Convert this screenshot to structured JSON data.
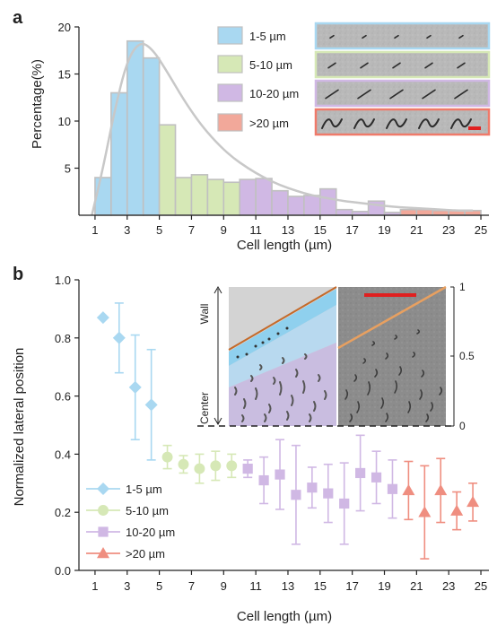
{
  "chart_data": [
    {
      "panel": "a",
      "type": "bar",
      "ylabel": "Percentage(%)",
      "xlabel": "Cell length (µm)",
      "xlim": [
        0,
        25.5
      ],
      "ylim": [
        0,
        20
      ],
      "xticks": [
        "1",
        "3",
        "5",
        "7",
        "9",
        "11",
        "13",
        "15",
        "17",
        "19",
        "21",
        "23",
        "25"
      ],
      "yticks": [
        "5",
        "10",
        "15",
        "20"
      ],
      "colors": {
        "1-5 µm": "#a9d8f1",
        "5-10 µm": "#d6e8b6",
        "10-20 µm": "#d0b8e4",
        ">20 µm": "#f2a89a",
        "curve": "#c8c8c8",
        "edge": "#c0c0c0"
      },
      "bins": [
        {
          "x": 1,
          "value": 4.0,
          "group": "1-5 µm"
        },
        {
          "x": 2,
          "value": 13.0,
          "group": "1-5 µm"
        },
        {
          "x": 3,
          "value": 18.5,
          "group": "1-5 µm"
        },
        {
          "x": 4,
          "value": 16.7,
          "group": "1-5 µm"
        },
        {
          "x": 5,
          "value": 9.6,
          "group": "5-10 µm"
        },
        {
          "x": 6,
          "value": 4.0,
          "group": "5-10 µm"
        },
        {
          "x": 7,
          "value": 4.3,
          "group": "5-10 µm"
        },
        {
          "x": 8,
          "value": 3.8,
          "group": "5-10 µm"
        },
        {
          "x": 9,
          "value": 3.5,
          "group": "5-10 µm"
        },
        {
          "x": 10,
          "value": 3.8,
          "group": "10-20 µm"
        },
        {
          "x": 11,
          "value": 3.9,
          "group": "10-20 µm"
        },
        {
          "x": 12,
          "value": 2.6,
          "group": "10-20 µm"
        },
        {
          "x": 13,
          "value": 2.0,
          "group": "10-20 µm"
        },
        {
          "x": 14,
          "value": 2.1,
          "group": "10-20 µm"
        },
        {
          "x": 15,
          "value": 2.8,
          "group": "10-20 µm"
        },
        {
          "x": 16,
          "value": 0.6,
          "group": "10-20 µm"
        },
        {
          "x": 17,
          "value": 0.4,
          "group": "10-20 µm"
        },
        {
          "x": 18,
          "value": 1.5,
          "group": "10-20 µm"
        },
        {
          "x": 19,
          "value": 0.3,
          "group": "10-20 µm"
        },
        {
          "x": 20,
          "value": 0.6,
          "group": ">20 µm"
        },
        {
          "x": 21,
          "value": 0.6,
          "group": ">20 µm"
        },
        {
          "x": 22,
          "value": 0.5,
          "group": ">20 µm"
        },
        {
          "x": 23,
          "value": 0.5,
          "group": ">20 µm"
        },
        {
          "x": 24,
          "value": 0.5,
          "group": ">20 µm"
        }
      ],
      "fit_curve": [
        [
          0.8,
          0
        ],
        [
          1.5,
          5
        ],
        [
          2.2,
          11
        ],
        [
          3.0,
          16.5
        ],
        [
          3.8,
          18.5
        ],
        [
          4.6,
          17.6
        ],
        [
          5.5,
          15.2
        ],
        [
          6.5,
          12.3
        ],
        [
          7.5,
          9.8
        ],
        [
          8.5,
          7.8
        ],
        [
          9.5,
          6.2
        ],
        [
          10.5,
          5.0
        ],
        [
          11.5,
          4.0
        ],
        [
          12.5,
          3.2
        ],
        [
          13.5,
          2.6
        ],
        [
          14.5,
          2.1
        ],
        [
          15.5,
          1.8
        ],
        [
          16.5,
          1.5
        ],
        [
          17.5,
          1.3
        ],
        [
          18.5,
          1.1
        ],
        [
          19.5,
          0.9
        ],
        [
          20.5,
          0.8
        ],
        [
          21.5,
          0.7
        ],
        [
          22.5,
          0.6
        ],
        [
          23.5,
          0.5
        ],
        [
          24.5,
          0.5
        ]
      ],
      "legend": [
        "1-5 µm",
        "5-10 µm",
        "10-20 µm",
        ">20 µm"
      ]
    },
    {
      "panel": "b",
      "type": "scatter",
      "ylabel": "Normalized lateral position",
      "xlabel": "Cell length (µm)",
      "xlim": [
        0,
        25.5
      ],
      "ylim": [
        0,
        1.0
      ],
      "xticks": [
        "1",
        "3",
        "5",
        "7",
        "9",
        "11",
        "13",
        "15",
        "17",
        "19",
        "21",
        "23",
        "25"
      ],
      "yticks": [
        "0.0",
        "0.2",
        "0.4",
        "0.6",
        "0.8",
        "1.0"
      ],
      "series": [
        {
          "name": "1-5 µm",
          "marker": "diamond",
          "color": "#a9d8f1",
          "points": [
            {
              "x": 1.5,
              "y": 0.87,
              "err": 0
            },
            {
              "x": 2.5,
              "y": 0.8,
              "err": 0.12
            },
            {
              "x": 3.5,
              "y": 0.63,
              "err": 0.18
            },
            {
              "x": 4.5,
              "y": 0.57,
              "err": 0.19
            }
          ]
        },
        {
          "name": "5-10 µm",
          "marker": "circle",
          "color": "#d6e8b6",
          "points": [
            {
              "x": 5.5,
              "y": 0.39,
              "err": 0.04
            },
            {
              "x": 6.5,
              "y": 0.365,
              "err": 0.03
            },
            {
              "x": 7.5,
              "y": 0.35,
              "err": 0.05
            },
            {
              "x": 8.5,
              "y": 0.36,
              "err": 0.05
            },
            {
              "x": 9.5,
              "y": 0.36,
              "err": 0.04
            }
          ]
        },
        {
          "name": "10-20 µm",
          "marker": "square",
          "color": "#d0b8e4",
          "points": [
            {
              "x": 10.5,
              "y": 0.35,
              "err": 0.03
            },
            {
              "x": 11.5,
              "y": 0.31,
              "err": 0.08
            },
            {
              "x": 12.5,
              "y": 0.33,
              "err": 0.12
            },
            {
              "x": 13.5,
              "y": 0.26,
              "err": 0.17
            },
            {
              "x": 14.5,
              "y": 0.285,
              "err": 0.07
            },
            {
              "x": 15.5,
              "y": 0.265,
              "err": 0.1
            },
            {
              "x": 16.5,
              "y": 0.23,
              "err": 0.14
            },
            {
              "x": 17.5,
              "y": 0.335,
              "err": 0.13
            },
            {
              "x": 18.5,
              "y": 0.32,
              "err": 0.09
            },
            {
              "x": 19.5,
              "y": 0.28,
              "err": 0.1
            }
          ]
        },
        {
          "name": ">20 µm",
          "marker": "triangle",
          "color": "#ef8e80",
          "points": [
            {
              "x": 20.5,
              "y": 0.275,
              "err": 0.1
            },
            {
              "x": 21.5,
              "y": 0.2,
              "err": 0.16
            },
            {
              "x": 22.5,
              "y": 0.275,
              "err": 0.11
            },
            {
              "x": 23.5,
              "y": 0.205,
              "err": 0.065
            },
            {
              "x": 24.5,
              "y": 0.235,
              "err": 0.065
            }
          ]
        }
      ],
      "inset": {
        "left_labels": [
          "Wall",
          "Center"
        ],
        "right_axis_ticks": [
          "0",
          "0.5",
          "1"
        ]
      }
    }
  ],
  "panel_labels": [
    "a",
    "b"
  ]
}
